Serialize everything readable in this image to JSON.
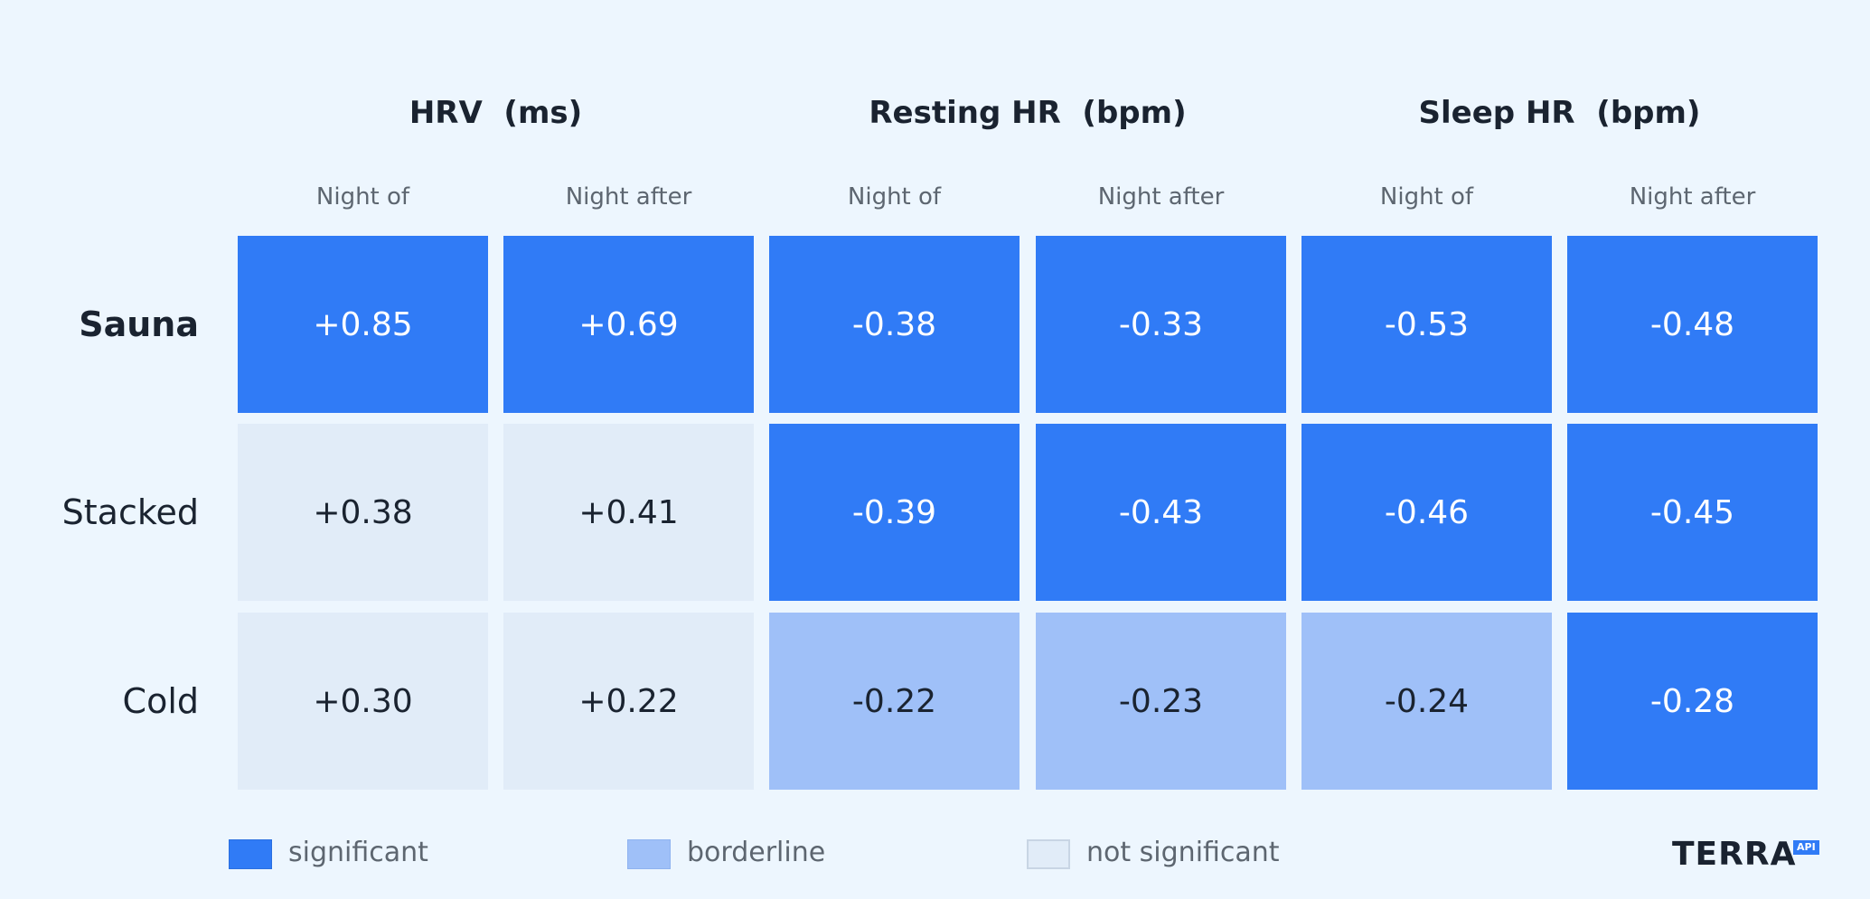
{
  "chart_data": {
    "type": "heatmap",
    "groups": [
      {
        "name": "HRV  (ms)"
      },
      {
        "name": "Resting HR  (bpm)"
      },
      {
        "name": "Sleep HR  (bpm)"
      }
    ],
    "columns": [
      "Night of",
      "Night after",
      "Night of",
      "Night after",
      "Night of",
      "Night after"
    ],
    "rows": [
      {
        "label": "Sauna",
        "bold": true,
        "values": [
          "+0.85",
          "+0.69",
          "-0.38",
          "-0.33",
          "-0.53",
          "-0.48"
        ],
        "status": [
          "significant",
          "significant",
          "significant",
          "significant",
          "significant",
          "significant"
        ]
      },
      {
        "label": "Stacked",
        "bold": false,
        "values": [
          "+0.38",
          "+0.41",
          "-0.39",
          "-0.43",
          "-0.46",
          "-0.45"
        ],
        "status": [
          "not_significant",
          "not_significant",
          "significant",
          "significant",
          "significant",
          "significant"
        ]
      },
      {
        "label": "Cold",
        "bold": false,
        "values": [
          "+0.30",
          "+0.22",
          "-0.22",
          "-0.23",
          "-0.24",
          "-0.28"
        ],
        "status": [
          "not_significant",
          "not_significant",
          "borderline",
          "borderline",
          "borderline",
          "significant"
        ]
      }
    ],
    "legend": [
      {
        "key": "significant",
        "label": "significant",
        "color": "#307bf6"
      },
      {
        "key": "borderline",
        "label": "borderline",
        "color": "#9fc0f8"
      },
      {
        "key": "not_significant",
        "label": "not significant",
        "color": "#e1ecf8"
      }
    ],
    "legend_position": "bottom"
  },
  "logo": {
    "name": "terra-api-logo",
    "text": "TERRA",
    "badge": "API"
  }
}
